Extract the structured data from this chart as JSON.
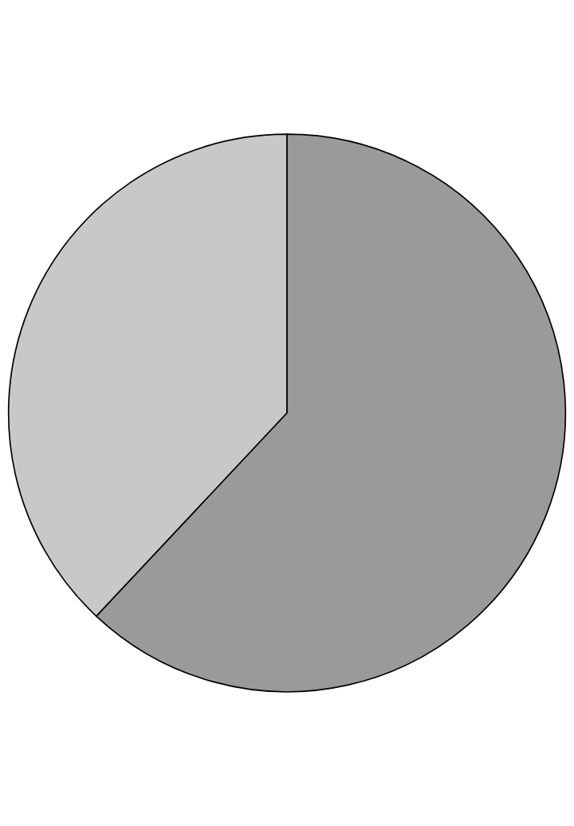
{
  "chart_data": {
    "type": "pie",
    "categories": [
      null,
      null
    ],
    "values": [
      38,
      62
    ],
    "colors": [
      "#c8c8c8",
      "#9a9a9a"
    ]
  }
}
